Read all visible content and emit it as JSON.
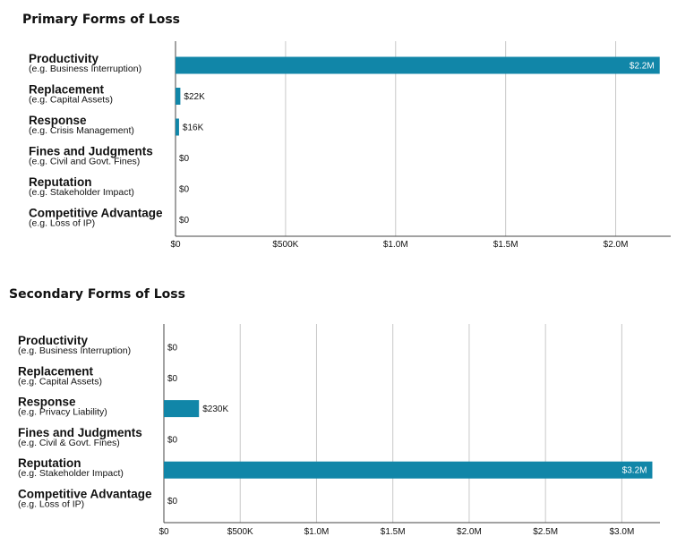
{
  "chart_data": [
    {
      "type": "bar",
      "orientation": "horizontal",
      "title": "Primary Forms of Loss",
      "categories": [
        "Productivity",
        "Replacement",
        "Response",
        "Fines and Judgments",
        "Reputation",
        "Competitive Advantage"
      ],
      "subtitles": [
        "(e.g. Business Interruption)",
        "(e.g. Capital Assets)",
        "(e.g. Crisis Management)",
        "(e.g. Civil and Govt. Fines)",
        "(e.g. Stakeholder Impact)",
        "(e.g. Loss of IP)"
      ],
      "values": [
        2200000,
        22000,
        16000,
        0,
        0,
        0
      ],
      "value_labels": [
        "$2.2M",
        "$22K",
        "$16K",
        "$0",
        "$0",
        "$0"
      ],
      "xlim": [
        0,
        2250000
      ],
      "xticks": [
        0,
        500000,
        1000000,
        1500000,
        2000000
      ],
      "xtick_labels": [
        "$0",
        "$500K",
        "$1.0M",
        "$1.5M",
        "$2.0M"
      ],
      "grid": true,
      "bar_color": "#1186a8"
    },
    {
      "type": "bar",
      "orientation": "horizontal",
      "title": "Secondary Forms of Loss",
      "categories": [
        "Productivity",
        "Replacement",
        "Response",
        "Fines and Judgments",
        "Reputation",
        "Competitive Advantage"
      ],
      "subtitles": [
        "(e.g. Business Interruption)",
        "(e.g. Capital Assets)",
        "(e.g. Privacy Liability)",
        "(e.g. Civil & Govt. Fines)",
        "(e.g. Stakeholder Impact)",
        "(e.g. Loss of IP)"
      ],
      "values": [
        0,
        0,
        230000,
        0,
        3200000,
        0
      ],
      "value_labels": [
        "$0",
        "$0",
        "$230K",
        "$0",
        "$3.2M",
        "$0"
      ],
      "xlim": [
        0,
        3250000
      ],
      "xticks": [
        0,
        500000,
        1000000,
        1500000,
        2000000,
        2500000,
        3000000
      ],
      "xtick_labels": [
        "$0",
        "$500K",
        "$1.0M",
        "$1.5M",
        "$2.0M",
        "$2.5M",
        "$3.0M"
      ],
      "grid": true,
      "bar_color": "#1186a8"
    }
  ]
}
